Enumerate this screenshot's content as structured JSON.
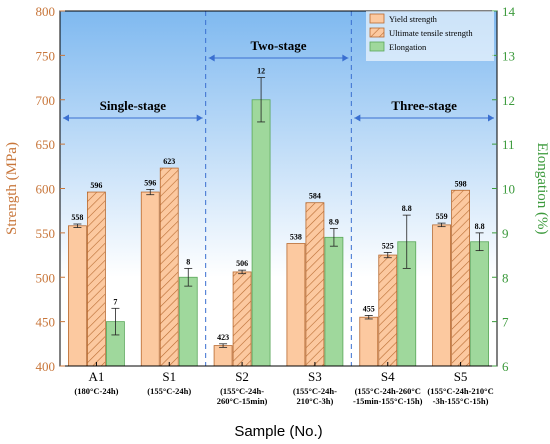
{
  "chart_data": {
    "type": "bar",
    "categories": [
      "A1",
      "S1",
      "S2",
      "S3",
      "S4",
      "S5"
    ],
    "category_sublabels": [
      [
        "(180°C-24h)"
      ],
      [
        "(155°C-24h)"
      ],
      [
        "(155°C-24h-",
        "260°C-15min)"
      ],
      [
        "(155°C-24h-",
        "210°C-3h)"
      ],
      [
        "(155°C-24h-260°C",
        "-15min-155°C-15h)"
      ],
      [
        "(155°C-24h-210°C",
        "-3h-155°C-15h)"
      ]
    ],
    "xlabel": "Sample (No.)",
    "ylabel_left": "Strength (MPa)",
    "ylabel_right": "Elongation (%)",
    "ylim_left": [
      400,
      800
    ],
    "ylim_right": [
      6,
      14
    ],
    "yticks_left": [
      "400",
      "450",
      "500",
      "550",
      "600",
      "650",
      "700",
      "750",
      "800"
    ],
    "yticks_right": [
      "6",
      "7",
      "8",
      "9",
      "10",
      "11",
      "12",
      "13",
      "14"
    ],
    "legend_position": "top-right",
    "series": [
      {
        "name": "Yield strength",
        "axis": "left",
        "values": [
          558,
          596,
          423,
          538,
          455,
          559
        ],
        "labels": [
          "558",
          "596",
          "423",
          "538",
          "455",
          "559"
        ],
        "errors": [
          2,
          3,
          2,
          0,
          2,
          2
        ],
        "color": "#fcc9a0",
        "pattern": "none"
      },
      {
        "name": "Ultimate tensile strength",
        "axis": "left",
        "values": [
          596,
          623,
          506,
          584,
          525,
          598
        ],
        "labels": [
          "596",
          "623",
          "506",
          "584",
          "525",
          "598"
        ],
        "errors": [
          0,
          0,
          2,
          0,
          3,
          0
        ],
        "color": "#fcc9a0",
        "pattern": "hatch"
      },
      {
        "name": "Elongation",
        "axis": "right",
        "values": [
          7,
          8,
          12,
          8.9,
          8.8,
          8.8
        ],
        "labels": [
          "7",
          "8",
          "12",
          "8.9",
          "8.8",
          "8.8"
        ],
        "errors": [
          0.3,
          0.2,
          0.5,
          0.2,
          0.6,
          0.2
        ],
        "color": "#9fd89c",
        "pattern": "none"
      }
    ],
    "regions": [
      {
        "label": "Single-stage",
        "from": "A1",
        "to": "S1"
      },
      {
        "label": "Two-stage",
        "from": "S2",
        "to": "S3"
      },
      {
        "label": "Three-stage",
        "from": "S4",
        "to": "S5"
      }
    ],
    "colors": {
      "background_top": "#7fb9f0",
      "background_bottom": "#ffffff",
      "left_axis": "#c8763a",
      "right_axis": "#3c9a3c",
      "divider": "#3a6fd0",
      "bar_stroke": "#b86a30",
      "elongation_stroke": "#5aa85a"
    }
  }
}
